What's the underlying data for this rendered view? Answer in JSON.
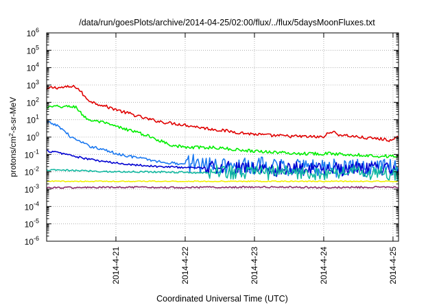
{
  "chart_data": {
    "type": "line",
    "title": "/data/run/goesPlots/archive/2014-04-25/02:00/flux/../flux/5daysMoonFluxes.txt",
    "xlabel": "Coordinated Universal Time (UTC)",
    "ylabel": "protons/cm2-s-sr-MeV",
    "ylabel_parts": {
      "pre": "protons/cm",
      "sup": "2",
      "post": "-s-sr-MeV"
    },
    "yscale": "log",
    "ylim_exp": [
      -6,
      6
    ],
    "y_ticks": [
      {
        "base": "10",
        "exp": "-6"
      },
      {
        "base": "10",
        "exp": "-5"
      },
      {
        "base": "10",
        "exp": "-4"
      },
      {
        "base": "10",
        "exp": "-3"
      },
      {
        "base": "10",
        "exp": "-2"
      },
      {
        "base": "10",
        "exp": "-1"
      },
      {
        "base": "10",
        "exp": "0"
      },
      {
        "base": "10",
        "exp": "1"
      },
      {
        "base": "10",
        "exp": "2"
      },
      {
        "base": "10",
        "exp": "3"
      },
      {
        "base": "10",
        "exp": "4"
      },
      {
        "base": "10",
        "exp": "5"
      },
      {
        "base": "10",
        "exp": "6"
      }
    ],
    "xlim_days": [
      20.0,
      25.08
    ],
    "x_ticks": [
      {
        "day": 21,
        "label": "2014-4-21"
      },
      {
        "day": 22,
        "label": "2014-4-22"
      },
      {
        "day": 23,
        "label": "2014-4-23"
      },
      {
        "day": 24,
        "label": "2014-4-24"
      },
      {
        "day": 25,
        "label": "2014-4-25"
      }
    ],
    "grid": true,
    "series": [
      {
        "color": "#e00000",
        "noise": 0.09,
        "points": [
          [
            20.0,
            2.7
          ],
          [
            20.05,
            2.85
          ],
          [
            20.1,
            2.85
          ],
          [
            20.2,
            2.85
          ],
          [
            20.3,
            2.88
          ],
          [
            20.42,
            2.9
          ],
          [
            20.5,
            2.6
          ],
          [
            20.55,
            2.3
          ],
          [
            20.62,
            2.1
          ],
          [
            20.7,
            1.95
          ],
          [
            20.8,
            1.85
          ],
          [
            20.9,
            1.7
          ],
          [
            21.0,
            1.6
          ],
          [
            21.1,
            1.45
          ],
          [
            21.2,
            1.35
          ],
          [
            21.4,
            1.1
          ],
          [
            21.5,
            1.0
          ],
          [
            21.7,
            0.85
          ],
          [
            22.0,
            0.7
          ],
          [
            22.3,
            0.5
          ],
          [
            22.6,
            0.35
          ],
          [
            22.9,
            0.2
          ],
          [
            23.2,
            0.1
          ],
          [
            23.5,
            0.05
          ],
          [
            24.0,
            0.0
          ],
          [
            24.1,
            0.35
          ],
          [
            24.2,
            0.15
          ],
          [
            24.6,
            -0.05
          ],
          [
            24.8,
            -0.1
          ],
          [
            25.0,
            -0.2
          ],
          [
            25.08,
            0.0
          ]
        ]
      },
      {
        "color": "#00ee00",
        "noise": 0.09,
        "points": [
          [
            20.0,
            1.7
          ],
          [
            20.1,
            1.75
          ],
          [
            20.35,
            1.75
          ],
          [
            20.42,
            1.75
          ],
          [
            20.5,
            1.35
          ],
          [
            20.6,
            1.0
          ],
          [
            20.8,
            0.85
          ],
          [
            21.0,
            0.6
          ],
          [
            21.2,
            0.4
          ],
          [
            21.4,
            0.15
          ],
          [
            21.6,
            -0.15
          ],
          [
            21.8,
            -0.45
          ],
          [
            22.0,
            -0.6
          ],
          [
            22.4,
            -0.6
          ],
          [
            22.8,
            -0.75
          ],
          [
            23.2,
            -0.85
          ],
          [
            23.6,
            -0.95
          ],
          [
            24.0,
            -0.95
          ],
          [
            24.4,
            -1.0
          ],
          [
            24.8,
            -1.1
          ],
          [
            25.08,
            -1.1
          ]
        ]
      },
      {
        "color": "#1a78f0",
        "noise": 0.08,
        "points": [
          [
            20.0,
            0.85
          ],
          [
            20.1,
            0.75
          ],
          [
            20.2,
            0.55
          ],
          [
            20.35,
            0.0
          ],
          [
            20.5,
            -0.3
          ],
          [
            20.6,
            -0.5
          ],
          [
            20.8,
            -0.7
          ],
          [
            21.0,
            -0.95
          ],
          [
            21.2,
            -1.1
          ],
          [
            21.4,
            -1.25
          ],
          [
            21.6,
            -1.4
          ],
          [
            21.8,
            -1.5
          ],
          [
            22.0,
            -1.55
          ],
          [
            22.2,
            -1.6
          ],
          [
            22.6,
            -1.7
          ],
          [
            23.0,
            -1.75
          ],
          [
            24.0,
            -1.8
          ],
          [
            25.08,
            -1.8
          ]
        ],
        "spike_from": 22.0,
        "spike_amp": 0.55
      },
      {
        "color": "#0000d0",
        "noise": 0.06,
        "points": [
          [
            20.0,
            -0.8
          ],
          [
            20.1,
            -0.85
          ],
          [
            20.3,
            -1.0
          ],
          [
            20.5,
            -1.2
          ],
          [
            20.8,
            -1.4
          ],
          [
            21.0,
            -1.5
          ],
          [
            21.3,
            -1.6
          ],
          [
            21.6,
            -1.7
          ],
          [
            22.0,
            -1.75
          ],
          [
            22.5,
            -1.8
          ],
          [
            23.0,
            -1.85
          ],
          [
            24.0,
            -1.9
          ],
          [
            25.08,
            -1.9
          ]
        ],
        "spike_from": 22.3,
        "spike_amp": 0.45
      },
      {
        "color": "#10b8a0",
        "noise": 0.05,
        "points": [
          [
            20.0,
            -1.9
          ],
          [
            20.3,
            -1.92
          ],
          [
            20.6,
            -1.95
          ],
          [
            21.0,
            -2.0
          ],
          [
            21.6,
            -2.0
          ],
          [
            22.2,
            -2.05
          ],
          [
            23.0,
            -2.1
          ],
          [
            24.0,
            -2.1
          ],
          [
            25.08,
            -2.15
          ]
        ],
        "spike_from": 22.3,
        "spike_amp": 0.45
      },
      {
        "color": "#f0f000",
        "noise": 0.03,
        "points": [
          [
            20.0,
            -2.55
          ],
          [
            21.0,
            -2.55
          ],
          [
            22.0,
            -2.55
          ],
          [
            23.0,
            -2.55
          ],
          [
            24.0,
            -2.55
          ],
          [
            25.08,
            -2.55
          ]
        ]
      },
      {
        "color": "#8a2a6a",
        "noise": 0.05,
        "points": [
          [
            20.0,
            -2.92
          ],
          [
            21.0,
            -2.9
          ],
          [
            22.0,
            -2.9
          ],
          [
            23.0,
            -2.88
          ],
          [
            24.0,
            -2.9
          ],
          [
            25.08,
            -2.88
          ]
        ]
      }
    ]
  }
}
